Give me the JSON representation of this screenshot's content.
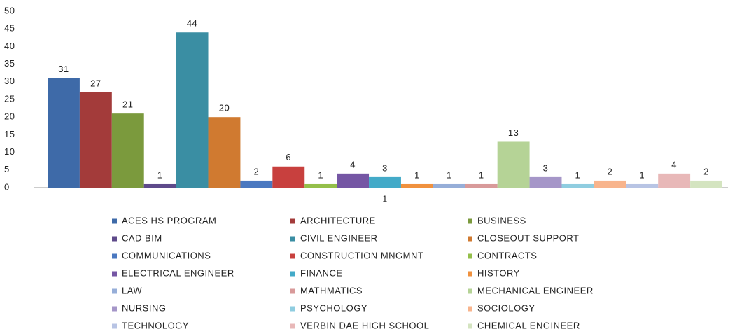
{
  "chart_data": {
    "type": "bar",
    "categories": [
      "1"
    ],
    "series": [
      {
        "name": "ACES HS PROGRAM",
        "color": "#3e6aa8",
        "values": [
          31
        ]
      },
      {
        "name": "ARCHITECTURE",
        "color": "#a33b3a",
        "values": [
          27
        ]
      },
      {
        "name": "BUSINESS",
        "color": "#7b9a3d",
        "values": [
          21
        ]
      },
      {
        "name": "CAD BIM",
        "color": "#5e4a8a",
        "values": [
          1
        ]
      },
      {
        "name": "CIVIL ENGINEER",
        "color": "#3a8ea3",
        "values": [
          44
        ]
      },
      {
        "name": "CLOSEOUT SUPPORT",
        "color": "#d07a30",
        "values": [
          20
        ]
      },
      {
        "name": "COMMUNICATIONS",
        "color": "#4a78c0",
        "values": [
          2
        ]
      },
      {
        "name": "CONSTRUCTION MNGMNT",
        "color": "#c8403e",
        "values": [
          6
        ]
      },
      {
        "name": "CONTRACTS",
        "color": "#94bf4a",
        "values": [
          1
        ]
      },
      {
        "name": "ELECTRICAL ENGINEER",
        "color": "#7556a4",
        "values": [
          4
        ]
      },
      {
        "name": "FINANCE",
        "color": "#43aac8",
        "values": [
          3
        ]
      },
      {
        "name": "HISTORY",
        "color": "#f0913e",
        "values": [
          1
        ]
      },
      {
        "name": "LAW",
        "color": "#96aed8",
        "values": [
          1
        ]
      },
      {
        "name": "MATHMATICS",
        "color": "#d89a9a",
        "values": [
          1
        ]
      },
      {
        "name": "MECHANICAL ENGINEER",
        "color": "#b5d396",
        "values": [
          13
        ]
      },
      {
        "name": "NURSING",
        "color": "#a596c8",
        "values": [
          3
        ]
      },
      {
        "name": "PSYCHOLOGY",
        "color": "#8fcde0",
        "values": [
          1
        ]
      },
      {
        "name": "SOCIOLOGY",
        "color": "#f8b48c",
        "values": [
          2
        ]
      },
      {
        "name": "TECHNOLOGY",
        "color": "#b8c4e4",
        "values": [
          1
        ]
      },
      {
        "name": "VERBIN DAE HIGH SCHOOL",
        "color": "#e8b8b8",
        "values": [
          4
        ]
      },
      {
        "name": "CHEMICAL ENGINEER",
        "color": "#d4e4c0",
        "values": [
          2
        ]
      }
    ],
    "ylim": [
      0,
      50
    ],
    "yticks": [
      0,
      5,
      10,
      15,
      20,
      25,
      30,
      35,
      40,
      45,
      50
    ],
    "grid": false,
    "legend": "bottom"
  }
}
